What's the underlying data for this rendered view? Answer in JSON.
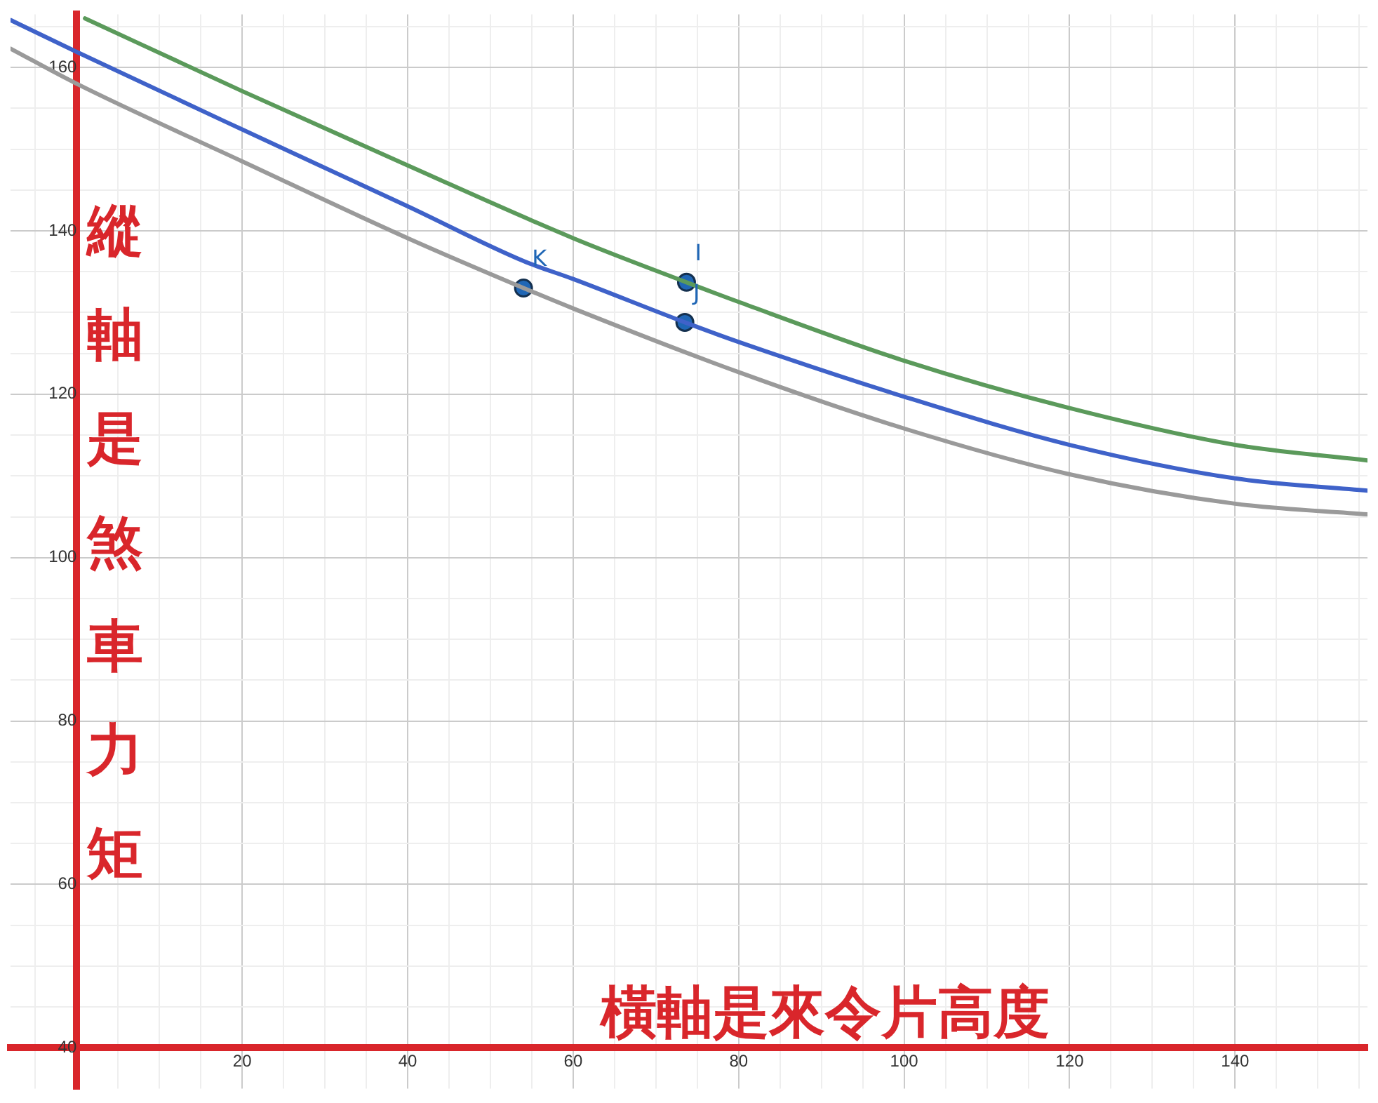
{
  "chart_data": {
    "type": "line",
    "xlabel": "橫軸是來令片高度",
    "ylabel": "縱軸是煞車力矩",
    "xlim": [
      -8,
      156
    ],
    "ylim": [
      35,
      166.5
    ],
    "xticks": [
      {
        "value": -5,
        "label": null
      },
      {
        "value": 0,
        "label": null
      },
      {
        "value": 5,
        "label": null
      },
      {
        "value": 10,
        "label": null
      },
      {
        "value": 15,
        "label": null
      },
      20,
      {
        "value": 25,
        "label": null
      },
      {
        "value": 30,
        "label": null
      },
      {
        "value": 35,
        "label": null
      },
      40,
      {
        "value": 45,
        "label": null
      },
      {
        "value": 50,
        "label": null
      },
      {
        "value": 55,
        "label": null
      },
      60,
      {
        "value": 65,
        "label": null
      },
      {
        "value": 70,
        "label": null
      },
      {
        "value": 75,
        "label": null
      },
      80,
      {
        "value": 85,
        "label": null
      },
      {
        "value": 90,
        "label": null
      },
      {
        "value": 95,
        "label": null
      },
      100,
      {
        "value": 105,
        "label": null
      },
      {
        "value": 110,
        "label": null
      },
      {
        "value": 115,
        "label": null
      },
      120,
      {
        "value": 125,
        "label": null
      },
      {
        "value": 130,
        "label": null
      },
      {
        "value": 135,
        "label": null
      },
      140,
      {
        "value": 145,
        "label": null
      },
      {
        "value": 150,
        "label": null
      },
      {
        "value": 155,
        "label": null
      }
    ],
    "yticks": [
      40,
      {
        "value": 45,
        "label": null
      },
      {
        "value": 50,
        "label": null
      },
      {
        "value": 55,
        "label": null
      },
      60,
      {
        "value": 65,
        "label": null
      },
      {
        "value": 70,
        "label": null
      },
      {
        "value": 75,
        "label": null
      },
      80,
      {
        "value": 85,
        "label": null
      },
      {
        "value": 90,
        "label": null
      },
      {
        "value": 95,
        "label": null
      },
      100,
      {
        "value": 105,
        "label": null
      },
      {
        "value": 110,
        "label": null
      },
      {
        "value": 115,
        "label": null
      },
      120,
      {
        "value": 125,
        "label": null
      },
      {
        "value": 130,
        "label": null
      },
      {
        "value": 135,
        "label": null
      },
      140,
      {
        "value": 145,
        "label": null
      },
      {
        "value": 150,
        "label": null
      },
      {
        "value": 155,
        "label": null
      },
      160,
      {
        "value": 165,
        "label": null
      }
    ],
    "grid": true,
    "legend": false,
    "series": [
      {
        "color": "#5b9a5b",
        "x": [
          1,
          20,
          40,
          60,
          73.7,
          80,
          100,
          120,
          140,
          156
        ],
        "values": [
          166,
          157.1,
          148,
          139.1,
          133.7,
          131.3,
          124.1,
          118.3,
          113.8,
          111.9
        ]
      },
      {
        "color": "#3f62c9",
        "x": [
          -8,
          0,
          20,
          40,
          54,
          60,
          73.5,
          80,
          100,
          120,
          140,
          156
        ],
        "values": [
          165.8,
          161.9,
          152.4,
          143,
          136.3,
          134.1,
          128.8,
          126.4,
          119.7,
          113.8,
          109.7,
          108.2
        ]
      },
      {
        "color": "#9a9a9a",
        "x": [
          -8,
          0,
          20,
          40,
          54,
          60,
          80,
          100,
          120,
          140,
          156
        ],
        "values": [
          162.3,
          158,
          148.5,
          139.1,
          133,
          130.5,
          122.7,
          115.8,
          110.2,
          106.6,
          105.3
        ]
      },
      {
        "type": "scatter",
        "name": "K",
        "color": "#1f66b5",
        "marker": "circle",
        "x": [
          54
        ],
        "values": [
          133
        ]
      },
      {
        "type": "scatter",
        "name": "I",
        "color": "#1f66b5",
        "marker": "circle",
        "x": [
          73.7
        ],
        "values": [
          133.7
        ]
      },
      {
        "type": "scatter",
        "name": "J",
        "color": "#1f66b5",
        "marker": "circle",
        "x": [
          73.5
        ],
        "values": [
          128.8
        ]
      }
    ]
  }
}
